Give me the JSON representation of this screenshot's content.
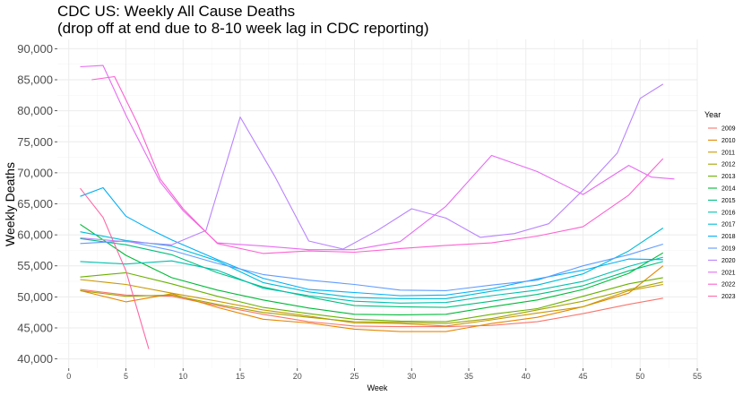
{
  "chart_data": {
    "type": "line",
    "title": "CDC US: Weekly All Cause Deaths",
    "subtitle": "(drop off at end due to 8-10 week lag in CDC reporting)",
    "xlabel": "Week",
    "ylabel": "Weekly Deaths",
    "xlim": [
      -1,
      55
    ],
    "ylim": [
      38500,
      91500
    ],
    "x_ticks": [
      0,
      5,
      10,
      15,
      20,
      25,
      30,
      35,
      40,
      45,
      50,
      55
    ],
    "y_ticks": [
      40000,
      45000,
      50000,
      55000,
      60000,
      65000,
      70000,
      75000,
      80000,
      85000,
      90000
    ],
    "y_tick_labels": [
      "40,000",
      "45,000",
      "50,000",
      "55,000",
      "60,000",
      "65,000",
      "70,000",
      "75,000",
      "80,000",
      "85,000",
      "90,000"
    ],
    "grid": true,
    "legend": {
      "title": "Year",
      "position": "right"
    },
    "series": [
      {
        "name": "2009",
        "color": "#F8766D",
        "x": [
          1,
          5,
          9,
          13,
          17,
          21,
          25,
          29,
          33,
          37,
          41,
          45,
          49,
          52
        ],
        "y": [
          51200,
          50300,
          50100,
          48600,
          47200,
          46000,
          45300,
          45200,
          45200,
          45400,
          46000,
          47300,
          48800,
          49800
        ]
      },
      {
        "name": "2010",
        "color": "#E58700",
        "x": [
          1,
          5,
          9,
          13,
          17,
          21,
          25,
          29,
          33,
          37,
          41,
          45,
          49,
          52
        ],
        "y": [
          51000,
          49200,
          50500,
          48300,
          46400,
          45800,
          44800,
          44400,
          44400,
          45700,
          46700,
          48400,
          50600,
          55000
        ]
      },
      {
        "name": "2011",
        "color": "#C99800",
        "x": [
          1,
          5,
          9,
          13,
          17,
          21,
          25,
          29,
          33,
          37,
          41,
          45,
          49,
          52
        ],
        "y": [
          52800,
          52000,
          50600,
          49300,
          47900,
          46900,
          45800,
          45700,
          45300,
          46300,
          47400,
          48400,
          51000,
          52000
        ]
      },
      {
        "name": "2012",
        "color": "#A3A500",
        "x": [
          1,
          5,
          9,
          13,
          17,
          21,
          25,
          29,
          33,
          37,
          41,
          45,
          49,
          52
        ],
        "y": [
          51000,
          50100,
          50300,
          48800,
          47500,
          46700,
          46000,
          45900,
          45700,
          46500,
          47900,
          49300,
          51200,
          52400
        ]
      },
      {
        "name": "2013",
        "color": "#6BB100",
        "x": [
          1,
          5,
          9,
          13,
          17,
          21,
          25,
          29,
          33,
          37,
          41,
          45,
          49,
          52
        ],
        "y": [
          53200,
          53900,
          52100,
          50100,
          48300,
          47300,
          46400,
          46100,
          46000,
          47200,
          48100,
          50100,
          52100,
          53100
        ]
      },
      {
        "name": "2014",
        "color": "#00BA38",
        "x": [
          1,
          5,
          9,
          13,
          17,
          21,
          25,
          29,
          33,
          37,
          41,
          45,
          49,
          52
        ],
        "y": [
          61700,
          56700,
          53100,
          51100,
          49500,
          48200,
          47200,
          47100,
          47200,
          48400,
          49500,
          51200,
          53800,
          57100
        ]
      },
      {
        "name": "2015",
        "color": "#00BF7D",
        "x": [
          1,
          5,
          9,
          13,
          17,
          21,
          25,
          29,
          33,
          37,
          41,
          45,
          49,
          52
        ],
        "y": [
          59400,
          58400,
          56800,
          53900,
          51600,
          50000,
          48600,
          48400,
          48300,
          49300,
          50400,
          51800,
          54200,
          55700
        ]
      },
      {
        "name": "2016",
        "color": "#00C0AF",
        "x": [
          1,
          5,
          9,
          13,
          17,
          21,
          25,
          29,
          33,
          37,
          41,
          45,
          49,
          52
        ],
        "y": [
          55700,
          55300,
          55800,
          54300,
          51400,
          50200,
          49300,
          49000,
          49100,
          50200,
          51100,
          52500,
          54900,
          56400
        ]
      },
      {
        "name": "2017",
        "color": "#00BCD8",
        "x": [
          1,
          5,
          9,
          13,
          17,
          21,
          25,
          29,
          33,
          37,
          41,
          45,
          49,
          52
        ],
        "y": [
          60500,
          59100,
          58200,
          55800,
          52300,
          50800,
          49900,
          49700,
          49700,
          50900,
          51900,
          53700,
          57400,
          61100
        ]
      },
      {
        "name": "2018",
        "color": "#00B0F6",
        "x": [
          1,
          3,
          5,
          7,
          9,
          13,
          17,
          21,
          25,
          29,
          33,
          37,
          41,
          45,
          49,
          52
        ],
        "y": [
          66200,
          67600,
          63000,
          61000,
          59200,
          56000,
          53000,
          51200,
          50700,
          50200,
          50300,
          51300,
          52900,
          54300,
          56100,
          56000
        ]
      },
      {
        "name": "2019",
        "color": "#619CFF",
        "x": [
          1,
          5,
          9,
          13,
          17,
          21,
          25,
          29,
          33,
          37,
          41,
          45,
          49,
          52
        ],
        "y": [
          58600,
          59000,
          57500,
          55400,
          53600,
          52700,
          52000,
          51100,
          51000,
          51900,
          52700,
          55000,
          56800,
          58500
        ]
      },
      {
        "name": "2020",
        "color": "#B983FF",
        "x": [
          1,
          5,
          9,
          12,
          15,
          18,
          21,
          24,
          27,
          30,
          33,
          36,
          39,
          42,
          45,
          48,
          50,
          52
        ],
        "y": [
          59500,
          58900,
          58400,
          60700,
          79000,
          69500,
          59000,
          57700,
          60700,
          64200,
          62700,
          59600,
          60200,
          61800,
          67200,
          73200,
          82000,
          84300
        ]
      },
      {
        "name": "2021",
        "color": "#E76BF3",
        "x": [
          1,
          3,
          5,
          8,
          10,
          13,
          17,
          21,
          25,
          29,
          33,
          37,
          41,
          45,
          49,
          51,
          53
        ],
        "y": [
          87100,
          87300,
          79300,
          68500,
          63900,
          58700,
          58200,
          57600,
          57600,
          58900,
          64600,
          72800,
          70200,
          66500,
          71200,
          69300,
          69000
        ]
      },
      {
        "name": "2022",
        "color": "#FD61D1",
        "x": [
          2,
          4,
          6,
          8,
          10,
          13,
          17,
          21,
          25,
          29,
          33,
          37,
          41,
          45,
          49,
          52
        ],
        "y": [
          85000,
          85500,
          78000,
          69000,
          64200,
          58600,
          57000,
          57400,
          57200,
          57800,
          58300,
          58700,
          59800,
          61300,
          66400,
          72300
        ]
      },
      {
        "name": "2023",
        "color": "#FF67A4",
        "x": [
          1,
          3,
          5,
          7
        ],
        "y": [
          67500,
          62800,
          54200,
          41600
        ]
      }
    ]
  }
}
